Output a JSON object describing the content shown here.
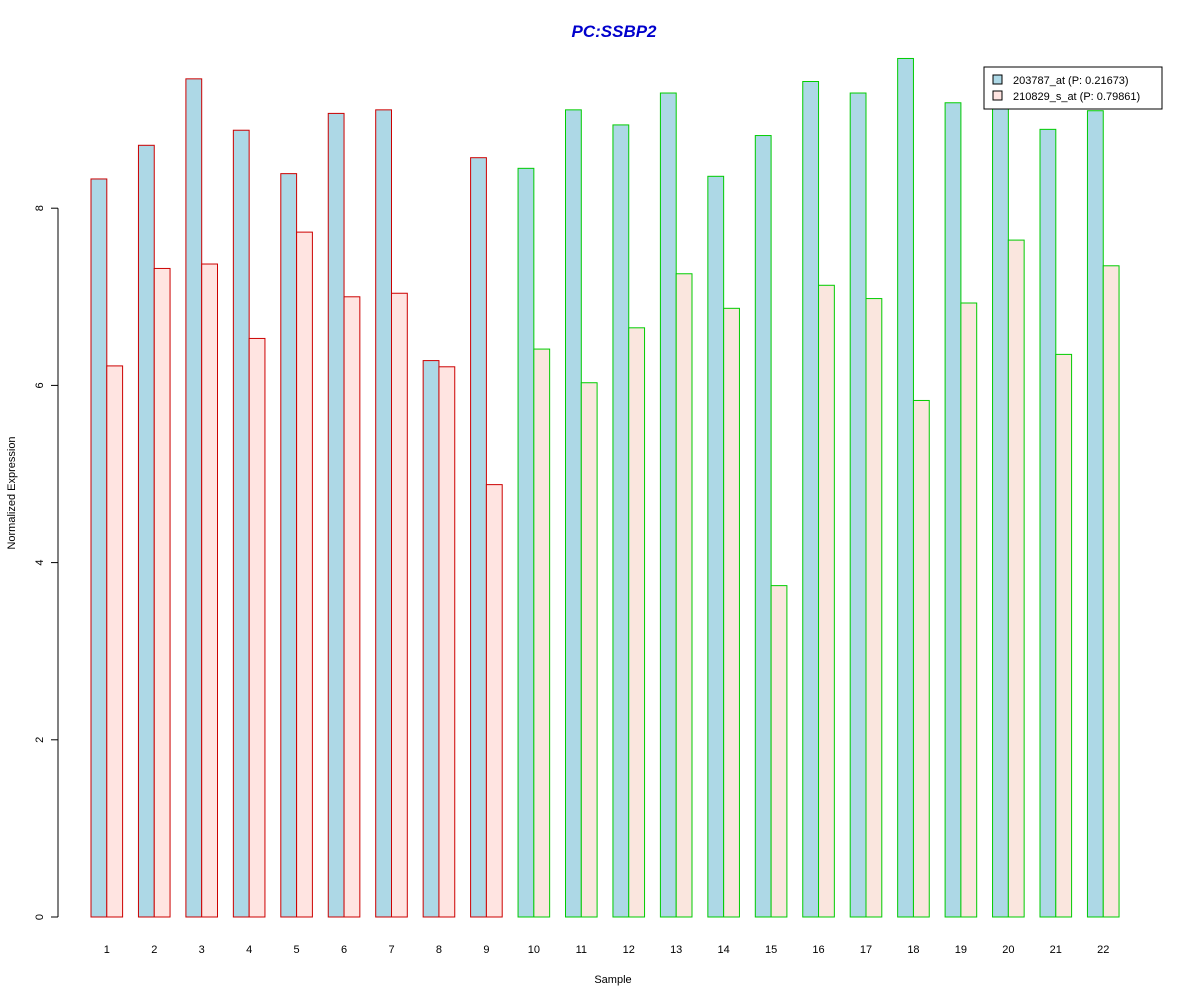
{
  "chart_data": {
    "type": "bar",
    "title": "PC:SSBP2",
    "title_color": "#0000cc",
    "xlabel": "Sample",
    "ylabel": "Normalized Expression",
    "ylim": [
      0,
      9.7
    ],
    "yticks": [
      0,
      2,
      4,
      6,
      8
    ],
    "grid": false,
    "legend_position": "top-right",
    "categories": [
      "1",
      "2",
      "3",
      "4",
      "5",
      "6",
      "7",
      "8",
      "9",
      "10",
      "11",
      "12",
      "13",
      "14",
      "15",
      "16",
      "17",
      "18",
      "19",
      "20",
      "21",
      "22"
    ],
    "series": [
      {
        "name": "203787_at (P: 0.21673)",
        "fill": "#add8e6",
        "values": [
          8.33,
          8.71,
          9.46,
          8.88,
          8.39,
          9.07,
          9.11,
          6.28,
          8.57,
          8.45,
          9.11,
          8.94,
          9.3,
          8.36,
          8.82,
          9.43,
          9.3,
          9.69,
          9.19,
          9.2,
          8.89,
          9.1
        ]
      },
      {
        "name": "210829_s_at (P: 0.79861)",
        "fill": "#ffe4e1",
        "values": [
          6.22,
          7.32,
          7.37,
          6.53,
          7.73,
          7.0,
          7.04,
          6.21,
          4.88,
          6.41,
          6.03,
          6.65,
          7.26,
          6.87,
          3.74,
          7.13,
          6.98,
          5.83,
          6.93,
          7.64,
          6.35,
          7.35
        ]
      }
    ],
    "group_border_colors": [
      "#cc0000",
      "#cc0000",
      "#cc0000",
      "#cc0000",
      "#cc0000",
      "#cc0000",
      "#cc0000",
      "#cc0000",
      "#cc0000",
      "#00cc00",
      "#00cc00",
      "#00cc00",
      "#00cc00",
      "#00cc00",
      "#00cc00",
      "#00cc00",
      "#00cc00",
      "#00cc00",
      "#00cc00",
      "#00cc00",
      "#00cc00",
      "#00cc00"
    ],
    "series2_fill_group2": "#fae6de"
  }
}
